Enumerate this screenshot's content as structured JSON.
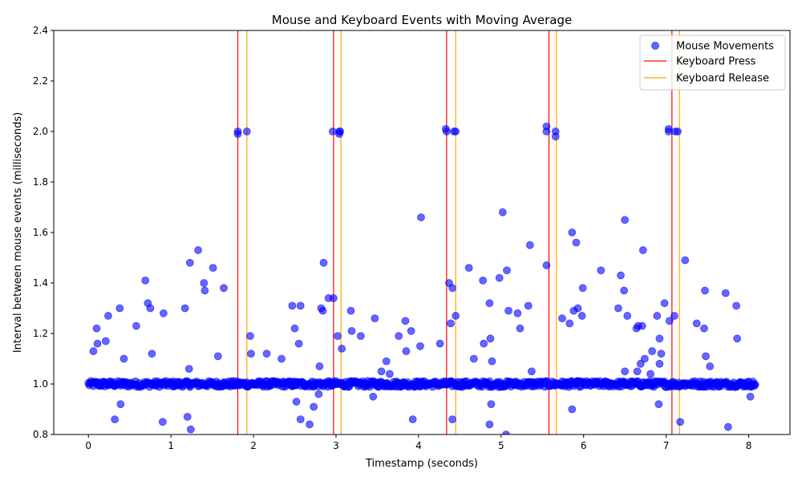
{
  "colors": {
    "mouse": "#0000ff",
    "press": "#ff0000",
    "release": "#ffa500",
    "axis": "#000000"
  },
  "chart_data": {
    "type": "scatter",
    "title": "Mouse and Keyboard Events with Moving Average",
    "xlabel": "Timestamp (seconds)",
    "ylabel": "Interval between mouse events (milliseconds)",
    "xlim": [
      -0.42,
      8.5
    ],
    "ylim": [
      0.8,
      2.4
    ],
    "xticks": [
      0,
      1,
      2,
      3,
      4,
      5,
      6,
      7,
      8
    ],
    "yticks": [
      0.8,
      1.0,
      1.2,
      1.4,
      1.6,
      1.8,
      2.0,
      2.2,
      2.4
    ],
    "xtick_labels": [
      "0",
      "1",
      "2",
      "3",
      "4",
      "5",
      "6",
      "7",
      "8"
    ],
    "ytick_labels": [
      "0.8",
      "1.0",
      "1.2",
      "1.4",
      "1.6",
      "1.8",
      "2.0",
      "2.2",
      "2.4"
    ],
    "legend": {
      "position": "upper right",
      "entries": [
        "Mouse Movements",
        "Keyboard Press",
        "Keyboard Release"
      ]
    },
    "keyboard_press": [
      1.81,
      2.97,
      4.34,
      5.58,
      7.07
    ],
    "keyboard_release": [
      1.92,
      3.06,
      4.45,
      5.67,
      7.16
    ],
    "baseline": {
      "x_start": 0.0,
      "x_end": 8.08,
      "step": 0.01,
      "value": 1.0,
      "jitter": 0.012
    },
    "series": [
      {
        "name": "Mouse Movements",
        "points": [
          [
            0.06,
            1.13
          ],
          [
            0.1,
            1.22
          ],
          [
            0.11,
            1.16
          ],
          [
            0.21,
            1.17
          ],
          [
            0.24,
            1.27
          ],
          [
            0.32,
            0.86
          ],
          [
            0.38,
            1.3
          ],
          [
            0.39,
            0.92
          ],
          [
            0.43,
            1.1
          ],
          [
            0.58,
            1.23
          ],
          [
            0.69,
            1.41
          ],
          [
            0.72,
            1.32
          ],
          [
            0.75,
            1.3
          ],
          [
            0.77,
            1.12
          ],
          [
            0.9,
            0.85
          ],
          [
            0.91,
            1.28
          ],
          [
            1.17,
            1.3
          ],
          [
            1.2,
            0.87
          ],
          [
            1.22,
            1.06
          ],
          [
            1.23,
            1.48
          ],
          [
            1.24,
            0.82
          ],
          [
            1.33,
            1.53
          ],
          [
            1.4,
            1.4
          ],
          [
            1.41,
            1.37
          ],
          [
            1.51,
            1.46
          ],
          [
            1.57,
            1.11
          ],
          [
            1.64,
            1.38
          ],
          [
            1.81,
            2.0
          ],
          [
            1.81,
            1.99
          ],
          [
            1.92,
            2.0
          ],
          [
            1.96,
            1.19
          ],
          [
            1.97,
            1.12
          ],
          [
            2.16,
            1.12
          ],
          [
            2.34,
            1.1
          ],
          [
            2.47,
            1.31
          ],
          [
            2.5,
            1.22
          ],
          [
            2.52,
            0.93
          ],
          [
            2.55,
            1.16
          ],
          [
            2.57,
            1.31
          ],
          [
            2.57,
            0.86
          ],
          [
            2.68,
            0.84
          ],
          [
            2.73,
            0.91
          ],
          [
            2.79,
            0.96
          ],
          [
            2.8,
            1.07
          ],
          [
            2.82,
            1.3
          ],
          [
            2.84,
            1.29
          ],
          [
            2.85,
            1.48
          ],
          [
            2.91,
            1.34
          ],
          [
            2.96,
            2.0
          ],
          [
            2.97,
            1.34
          ],
          [
            3.02,
            1.19
          ],
          [
            3.04,
            2.0
          ],
          [
            3.05,
            2.0
          ],
          [
            3.04,
            1.99
          ],
          [
            3.07,
            1.14
          ],
          [
            3.18,
            1.29
          ],
          [
            3.19,
            1.21
          ],
          [
            3.3,
            1.19
          ],
          [
            3.45,
            0.95
          ],
          [
            3.47,
            1.26
          ],
          [
            3.55,
            1.05
          ],
          [
            3.61,
            1.09
          ],
          [
            3.65,
            1.04
          ],
          [
            3.76,
            1.19
          ],
          [
            3.84,
            1.25
          ],
          [
            3.85,
            1.13
          ],
          [
            3.91,
            1.21
          ],
          [
            3.93,
            0.86
          ],
          [
            4.02,
            1.15
          ],
          [
            4.03,
            1.66
          ],
          [
            4.26,
            1.16
          ],
          [
            4.33,
            2.01
          ],
          [
            4.34,
            2.0
          ],
          [
            4.37,
            1.4
          ],
          [
            4.39,
            1.24
          ],
          [
            4.41,
            0.86
          ],
          [
            4.41,
            1.38
          ],
          [
            4.43,
            2.0
          ],
          [
            4.45,
            2.0
          ],
          [
            4.45,
            1.27
          ],
          [
            4.61,
            1.46
          ],
          [
            4.67,
            1.1
          ],
          [
            4.78,
            1.41
          ],
          [
            4.79,
            1.16
          ],
          [
            4.86,
            0.84
          ],
          [
            4.86,
            1.32
          ],
          [
            4.87,
            1.18
          ],
          [
            4.88,
            0.92
          ],
          [
            4.89,
            1.09
          ],
          [
            4.98,
            1.42
          ],
          [
            5.02,
            1.68
          ],
          [
            5.06,
            0.8
          ],
          [
            5.07,
            1.45
          ],
          [
            5.09,
            1.29
          ],
          [
            5.2,
            1.28
          ],
          [
            5.23,
            1.22
          ],
          [
            5.33,
            1.31
          ],
          [
            5.35,
            1.55
          ],
          [
            5.37,
            1.05
          ],
          [
            5.55,
            2.02
          ],
          [
            5.55,
            2.0
          ],
          [
            5.55,
            1.47
          ],
          [
            5.66,
            2.0
          ],
          [
            5.66,
            1.98
          ],
          [
            5.74,
            1.26
          ],
          [
            5.83,
            1.24
          ],
          [
            5.86,
            1.6
          ],
          [
            5.86,
            0.9
          ],
          [
            5.88,
            1.29
          ],
          [
            5.91,
            1.56
          ],
          [
            5.93,
            1.3
          ],
          [
            5.98,
            1.27
          ],
          [
            5.99,
            1.38
          ],
          [
            6.21,
            1.45
          ],
          [
            6.42,
            1.3
          ],
          [
            6.45,
            1.43
          ],
          [
            6.49,
            1.37
          ],
          [
            6.5,
            1.65
          ],
          [
            6.5,
            1.05
          ],
          [
            6.53,
            1.27
          ],
          [
            6.64,
            1.22
          ],
          [
            6.65,
            1.05
          ],
          [
            6.66,
            1.23
          ],
          [
            6.69,
            1.08
          ],
          [
            6.71,
            1.23
          ],
          [
            6.72,
            1.53
          ],
          [
            6.74,
            1.1
          ],
          [
            6.81,
            1.04
          ],
          [
            6.83,
            1.13
          ],
          [
            6.89,
            1.27
          ],
          [
            6.91,
            0.92
          ],
          [
            6.92,
            1.18
          ],
          [
            6.92,
            1.08
          ],
          [
            6.94,
            1.12
          ],
          [
            6.98,
            1.32
          ],
          [
            7.03,
            2.01
          ],
          [
            7.03,
            2.0
          ],
          [
            7.04,
            1.25
          ],
          [
            7.1,
            1.27
          ],
          [
            7.11,
            2.0
          ],
          [
            7.14,
            2.0
          ],
          [
            7.17,
            0.85
          ],
          [
            7.23,
            1.49
          ],
          [
            7.37,
            1.24
          ],
          [
            7.46,
            1.22
          ],
          [
            7.47,
            1.37
          ],
          [
            7.48,
            1.11
          ],
          [
            7.53,
            1.07
          ],
          [
            7.72,
            1.36
          ],
          [
            7.75,
            0.83
          ],
          [
            7.85,
            1.31
          ],
          [
            7.86,
            1.18
          ],
          [
            7.91,
            1.0
          ],
          [
            8.02,
            0.95
          ]
        ]
      }
    ]
  }
}
